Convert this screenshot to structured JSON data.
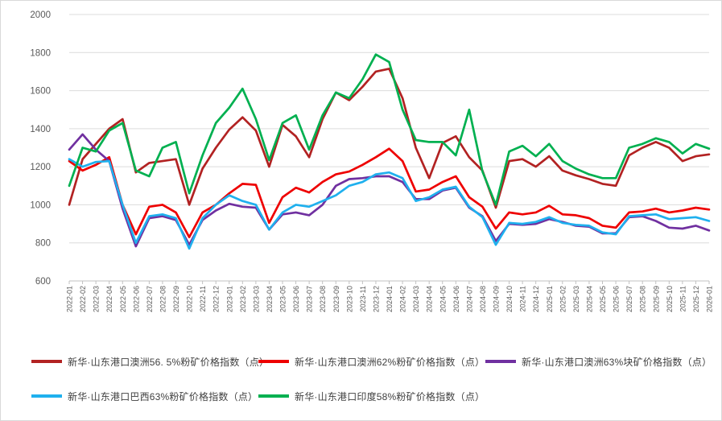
{
  "colors": {
    "background": "#ffffff",
    "frame_border": "#d9d9d9",
    "gridline": "#dcdcdc",
    "axis_line": "#c0c0c0",
    "tick_label": "#595959",
    "legend_text": "#404040"
  },
  "chart_data": {
    "type": "line",
    "title": "",
    "xlabel": "",
    "ylabel": "",
    "grid": true,
    "legend_position": "bottom",
    "y_axis": {
      "min": 600,
      "max": 2000,
      "step": 200,
      "ticks": [
        600,
        800,
        1000,
        1200,
        1400,
        1600,
        1800,
        2000
      ]
    },
    "x_labels": [
      "2022-01",
      "2022-02",
      "2022-03",
      "2022-04",
      "2022-05",
      "2022-06",
      "2022-07",
      "2022-08",
      "2022-09",
      "2022-10",
      "2022-11",
      "2022-12",
      "2023-01",
      "2023-02",
      "2023-03",
      "2023-04",
      "2023-05",
      "2023-06",
      "2023-07",
      "2023-08",
      "2023-09",
      "2023-10",
      "2023-11",
      "2023-12",
      "2024-01",
      "2024-02",
      "2024-03",
      "2024-04",
      "2024-05",
      "2024-06",
      "2024-07",
      "2024-08",
      "2024-09",
      "2024-10",
      "2024-11",
      "2024-12",
      "2025-01",
      "2025-02",
      "2025-03",
      "2025-04",
      "2025-05",
      "2025-06",
      "2025-07",
      "2025-08",
      "2025-09",
      "2025-10",
      "2025-11",
      "2025-12",
      "2026-01"
    ],
    "series": [
      {
        "name": "新华·山东港口澳洲56. 5%粉矿价格指数（点）",
        "color": "#b22222",
        "values": [
          1000,
          1240,
          1320,
          1400,
          1450,
          1170,
          1220,
          1230,
          1240,
          1000,
          1190,
          1300,
          1395,
          1460,
          1390,
          1200,
          1420,
          1360,
          1250,
          1450,
          1590,
          1550,
          1620,
          1700,
          1715,
          1560,
          1300,
          1140,
          1325,
          1360,
          1250,
          1180,
          985,
          1230,
          1240,
          1200,
          1255,
          1180,
          1155,
          1135,
          1110,
          1100,
          1260,
          1300,
          1330,
          1300,
          1230,
          1255,
          1265
        ]
      },
      {
        "name": "新华·山东港口澳洲62%粉矿价格指数（点）",
        "color": "#ee0000",
        "values": [
          1230,
          1180,
          1210,
          1250,
          1000,
          845,
          990,
          1000,
          960,
          830,
          960,
          1000,
          1060,
          1110,
          1105,
          905,
          1040,
          1090,
          1065,
          1120,
          1160,
          1175,
          1210,
          1250,
          1295,
          1230,
          1070,
          1080,
          1120,
          1150,
          1040,
          990,
          875,
          960,
          950,
          960,
          995,
          950,
          945,
          930,
          890,
          880,
          960,
          965,
          980,
          960,
          970,
          985,
          975
        ]
      },
      {
        "name": "新华·山东港口澳洲63%块矿价格指数（点）",
        "color": "#7030a0",
        "values": [
          1290,
          1370,
          1290,
          1230,
          980,
          782,
          930,
          940,
          920,
          790,
          920,
          970,
          1005,
          990,
          985,
          870,
          950,
          960,
          945,
          1000,
          1100,
          1135,
          1140,
          1150,
          1150,
          1120,
          1030,
          1030,
          1075,
          1090,
          985,
          940,
          810,
          900,
          895,
          900,
          925,
          910,
          890,
          885,
          850,
          850,
          935,
          940,
          915,
          880,
          875,
          890,
          865
        ]
      },
      {
        "name": "新华·山东港口巴西63%粉矿价格指数（点）",
        "color": "#1fb0ee",
        "values": [
          1240,
          1200,
          1225,
          1230,
          1000,
          800,
          940,
          950,
          930,
          770,
          930,
          1000,
          1050,
          1020,
          1000,
          870,
          960,
          1000,
          990,
          1020,
          1050,
          1100,
          1120,
          1160,
          1170,
          1140,
          1020,
          1040,
          1080,
          1095,
          990,
          935,
          790,
          905,
          900,
          910,
          935,
          905,
          895,
          890,
          855,
          845,
          940,
          945,
          950,
          925,
          930,
          935,
          915
        ]
      },
      {
        "name": "新华·山东港口印度58%粉矿价格指数（点）",
        "color": "#00b050",
        "values": [
          1100,
          1300,
          1280,
          1390,
          1430,
          1180,
          1150,
          1300,
          1330,
          1060,
          1260,
          1430,
          1510,
          1610,
          1450,
          1235,
          1430,
          1470,
          1290,
          1470,
          1590,
          1560,
          1660,
          1790,
          1750,
          1500,
          1340,
          1330,
          1330,
          1260,
          1500,
          1175,
          1000,
          1280,
          1310,
          1255,
          1320,
          1230,
          1190,
          1160,
          1140,
          1140,
          1300,
          1320,
          1350,
          1330,
          1270,
          1320,
          1295
        ]
      }
    ]
  }
}
